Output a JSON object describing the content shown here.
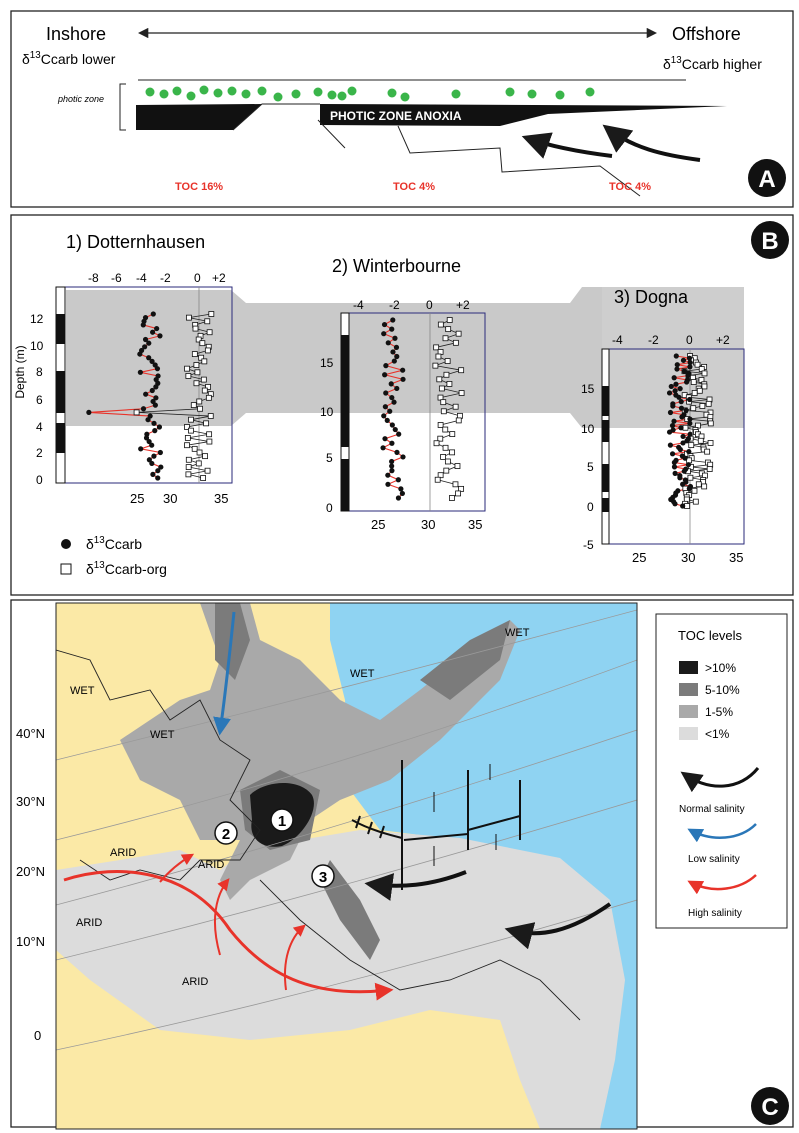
{
  "panel_a": {
    "letter": "A",
    "inshore": "Inshore",
    "offshore": "Offshore",
    "d13c_lower": "δ13Ccarb lower",
    "d13c_higher": "δ13Ccarb higher",
    "photic_zone": "photic zone",
    "anoxia": "PHOTIC ZONE ANOXIA",
    "toc": [
      "TOC 16%",
      "TOC 4%",
      "TOC 4%"
    ],
    "toc_color": "#e8332a",
    "dot_color": "#3ab54a"
  },
  "panel_b": {
    "letter": "B",
    "depth_label": "Depth (m)",
    "legend_carb": "δ13Ccarb",
    "legend_org": "δ13Ccarb-org",
    "sites": [
      {
        "title": "1) Dotternhausen",
        "top_ticks": [
          "-8",
          "-6",
          "-4",
          "-2",
          "0",
          "+2"
        ],
        "bottom_ticks": [
          "25",
          "30",
          "35"
        ],
        "depth_ticks": [
          "0",
          "2",
          "4",
          "6",
          "8",
          "10",
          "12"
        ]
      },
      {
        "title": "2) Winterbourne",
        "top_ticks": [
          "-4",
          "-2",
          "0",
          "+2"
        ],
        "bottom_ticks": [
          "25",
          "30",
          "35"
        ],
        "depth_ticks": [
          "0",
          "5",
          "10",
          "15"
        ]
      },
      {
        "title": "3) Dogna",
        "top_ticks": [
          "-4",
          "-2",
          "0",
          "+2"
        ],
        "bottom_ticks": [
          "25",
          "30",
          "35"
        ],
        "depth_ticks": [
          "-5",
          "0",
          "5",
          "10",
          "15"
        ]
      }
    ]
  },
  "panel_c": {
    "letter": "C",
    "latitudes": [
      "40°N",
      "30°N",
      "20°N",
      "10°N",
      "0"
    ],
    "climate": [
      "WET",
      "WET",
      "WET",
      "WET",
      "ARID",
      "ARID",
      "ARID",
      "ARID"
    ],
    "site_numbers": [
      "1",
      "2",
      "3"
    ],
    "legend_title": "TOC levels",
    "toc_levels": [
      {
        "label": ">10%",
        "color": "#1a1a1a"
      },
      {
        "label": "5-10%",
        "color": "#7b7b7b"
      },
      {
        "label": "1-5%",
        "color": "#a9a9a9"
      },
      {
        "label": "<1%",
        "color": "#dcdcdc"
      }
    ],
    "salinity": [
      {
        "label": "Normal salinity",
        "color": "#1a1a1a"
      },
      {
        "label": "Low salinity",
        "color": "#2a77b8"
      },
      {
        "label": "High salinity",
        "color": "#e8332a"
      }
    ],
    "ocean_color": "#8fd3f2",
    "land_color": "#fbe9a6"
  }
}
